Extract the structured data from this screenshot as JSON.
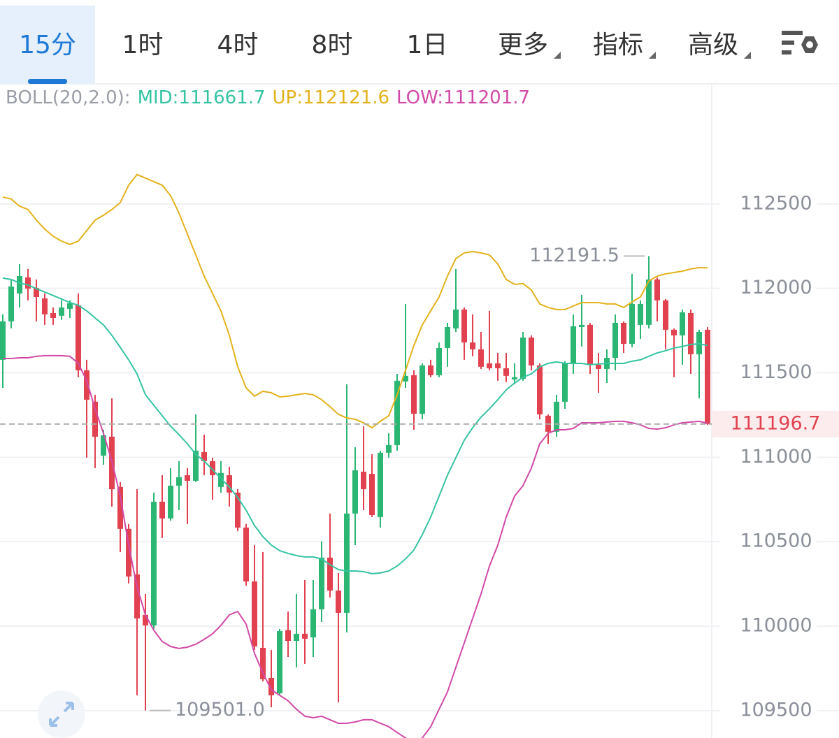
{
  "tabs": [
    "15分",
    "1时",
    "4时",
    "8时",
    "1日",
    "更多",
    "指标",
    "高级"
  ],
  "selected_tab": 0,
  "chart_data": {
    "type": "candlestick",
    "indicator": "BOLL(20,2.0):",
    "up_color": "#2bb673",
    "down_color": "#e2414f",
    "open": [
      111577,
      111805,
      111970,
      112065,
      112003,
      111941,
      111854,
      111838,
      111879,
      111900,
      111515,
      111329,
      111010,
      111122,
      110824,
      110576,
      110307,
      110067,
      110005,
      110737,
      110638,
      110832,
      110894,
      110861,
      111031,
      110977,
      110824,
      110894,
      110791,
      110584,
      110265,
      109872,
      109694,
      109603,
      109976,
      109913,
      109955,
      109934,
      110100,
      110406,
      110211,
      110079,
      110667,
      110915,
      110902,
      110646,
      111027,
      111072,
      111449,
      111486,
      111258,
      111544,
      111486,
      111647,
      111763,
      111875,
      111680,
      111639,
      111556,
      111556,
      111527,
      111461,
      111465,
      111709,
      111544,
      111246,
      111151,
      111329,
      111556,
      111771,
      111784,
      111548,
      111523,
      111589,
      111796,
      111672,
      111784,
      111784,
      112053,
      111929,
      111755,
      111722,
      111854,
      111610,
      111755
    ],
    "high": [
      111846,
      112053,
      112144,
      112115,
      112053,
      111970,
      111887,
      111929,
      111929,
      111970,
      111577,
      111370,
      111163,
      111349,
      110853,
      110605,
      110811,
      110191,
      110791,
      110894,
      110936,
      110977,
      110936,
      111254,
      111134,
      110998,
      110977,
      110944,
      110811,
      110605,
      110480,
      110439,
      109860,
      109984,
      110087,
      110191,
      110273,
      110273,
      110501,
      110667,
      110315,
      111432,
      111060,
      111184,
      111018,
      111039,
      111142,
      111494,
      111908,
      111515,
      111556,
      111577,
      111680,
      111796,
      112115,
      111887,
      111846,
      111742,
      111867,
      111618,
      111618,
      111556,
      111742,
      111722,
      111556,
      111254,
      111370,
      111569,
      111846,
      111962,
      111796,
      111618,
      111639,
      111846,
      111805,
      112086,
      111929,
      112191.5,
      112065,
      111937,
      111763,
      111875,
      111875,
      111755,
      111771
    ],
    "low": [
      111411,
      111763,
      111887,
      111929,
      111805,
      111784,
      111784,
      111813,
      111825,
      111474,
      110998,
      110936,
      110956,
      110708,
      110439,
      110253,
      109591,
      109501.0,
      109984,
      110522,
      110625,
      110687,
      110605,
      110853,
      110894,
      110749,
      110791,
      110708,
      110563,
      110240,
      109860,
      109673,
      109520,
      109591,
      109818,
      109756,
      109777,
      109818,
      110025,
      110170,
      109549,
      109963,
      110480,
      110687,
      110646,
      110584,
      110998,
      111039,
      111411,
      111163,
      111225,
      111474,
      111474,
      111536,
      111742,
      111577,
      111598,
      111523,
      111515,
      111453,
      111445,
      111432,
      111453,
      111515,
      111225,
      111080,
      111122,
      111287,
      111494,
      111656,
      111494,
      111382,
      111440,
      111515,
      111618,
      111651,
      111701,
      111763,
      111805,
      111639,
      111474,
      111548,
      111494,
      111349,
      111192
    ],
    "close": [
      111805,
      112011,
      112073,
      111999,
      111949,
      111846,
      111825,
      111887,
      111912,
      111515,
      111341,
      111122,
      111130,
      110811,
      110576,
      110294,
      110046,
      110005,
      110737,
      110638,
      110832,
      110882,
      110861,
      111039,
      110977,
      110894,
      110907,
      110791,
      110584,
      110265,
      109880,
      109686,
      109591,
      109971,
      109913,
      109955,
      109926,
      110100,
      110406,
      110211,
      110079,
      110667,
      110923,
      110811,
      110658,
      111027,
      111072,
      111453,
      111482,
      111258,
      111544,
      111486,
      111647,
      111771,
      111875,
      111680,
      111639,
      111536,
      111527,
      111527,
      111482,
      111474,
      111709,
      111544,
      111254,
      111151,
      111329,
      111556,
      111776,
      111784,
      111548,
      111523,
      111589,
      111796,
      111672,
      111908,
      111908,
      112053,
      111929,
      111755,
      111722,
      111858,
      111610,
      111742,
      111196.7
    ],
    "bands": [
      {
        "legend": "MID:111661.7",
        "color": "#35c4a2",
        "values": [
          112061,
          112053,
          112032,
          112020,
          111999,
          111978,
          111958,
          111937,
          111916,
          111900,
          111867,
          111825,
          111784,
          111722,
          111651,
          111577,
          111494,
          111370,
          111308,
          111246,
          111184,
          111134,
          111080,
          111018,
          110977,
          110927,
          110874,
          110824,
          110762,
          110687,
          110596,
          110530,
          110480,
          110447,
          110431,
          110418,
          110410,
          110410,
          110398,
          110364,
          110335,
          110327,
          110327,
          110323,
          110311,
          110315,
          110327,
          110356,
          110398,
          110451,
          110542,
          110646,
          110770,
          110894,
          110998,
          111101,
          111175,
          111238,
          111287,
          111341,
          111399,
          111440,
          111474,
          111494,
          111536,
          111556,
          111565,
          111556,
          111556,
          111556,
          111548,
          111552,
          111556,
          111556,
          111556,
          111569,
          111577,
          111598,
          111618,
          111631,
          111647,
          111656,
          111668,
          111672,
          111661.7
        ]
      },
      {
        "legend": "UP:112121.6",
        "color": "#e3b21c",
        "values": [
          112541,
          112529,
          112487,
          112467,
          112404,
          112351,
          112309,
          112280,
          112260,
          112280,
          112342,
          112404,
          112433,
          112467,
          112508,
          112611,
          112674,
          112653,
          112632,
          112611,
          112549,
          112446,
          112322,
          112198,
          112073,
          111970,
          111867,
          111722,
          111536,
          111411,
          111362,
          111391,
          111382,
          111358,
          111362,
          111370,
          111378,
          111370,
          111341,
          111300,
          111254,
          111233,
          111225,
          111204,
          111175,
          111213,
          111246,
          111370,
          111515,
          111662,
          111784,
          111867,
          111949,
          112073,
          112177,
          112210,
          112218,
          112210,
          112198,
          112144,
          112053,
          112024,
          112028,
          111991,
          111908,
          111887,
          111875,
          111875,
          111896,
          111916,
          111916,
          111916,
          111908,
          111908,
          111887,
          111920,
          111949,
          112044,
          112073,
          112086,
          112094,
          112102,
          112115,
          112123,
          112121.6
        ]
      },
      {
        "legend": "LOW:111201.7",
        "color": "#d24aa8",
        "values": [
          111585,
          111585,
          111589,
          111589,
          111598,
          111602,
          111602,
          111602,
          111598,
          111556,
          111453,
          111287,
          111142,
          110977,
          110770,
          110480,
          110232,
          110067,
          109976,
          109909,
          109880,
          109868,
          109876,
          109893,
          109922,
          109955,
          110005,
          110067,
          110087,
          110013,
          109839,
          109723,
          109624,
          109591,
          109558,
          109508,
          109467,
          109458,
          109467,
          109446,
          109425,
          109425,
          109433,
          109446,
          109446,
          109425,
          109405,
          109371,
          109338,
          109313,
          109338,
          109405,
          109508,
          109611,
          109756,
          109901,
          110046,
          110191,
          110356,
          110480,
          110646,
          110770,
          110832,
          110936,
          111080,
          111142,
          111163,
          111163,
          111171,
          111204,
          111204,
          111204,
          111209,
          111213,
          111213,
          111204,
          111192,
          111171,
          111167,
          111175,
          111192,
          111204,
          111209,
          111213,
          111201.7
        ]
      }
    ],
    "current_price": 111196.7,
    "annotations": [
      {
        "value": 112191.5,
        "label": "112191.5"
      },
      {
        "value": 109501.0,
        "label": "109501.0"
      }
    ],
    "ylim": [
      109338,
      113211
    ],
    "yticks": [
      109500,
      110000,
      110500,
      111000,
      111500,
      112000,
      112500
    ],
    "grid": true
  }
}
